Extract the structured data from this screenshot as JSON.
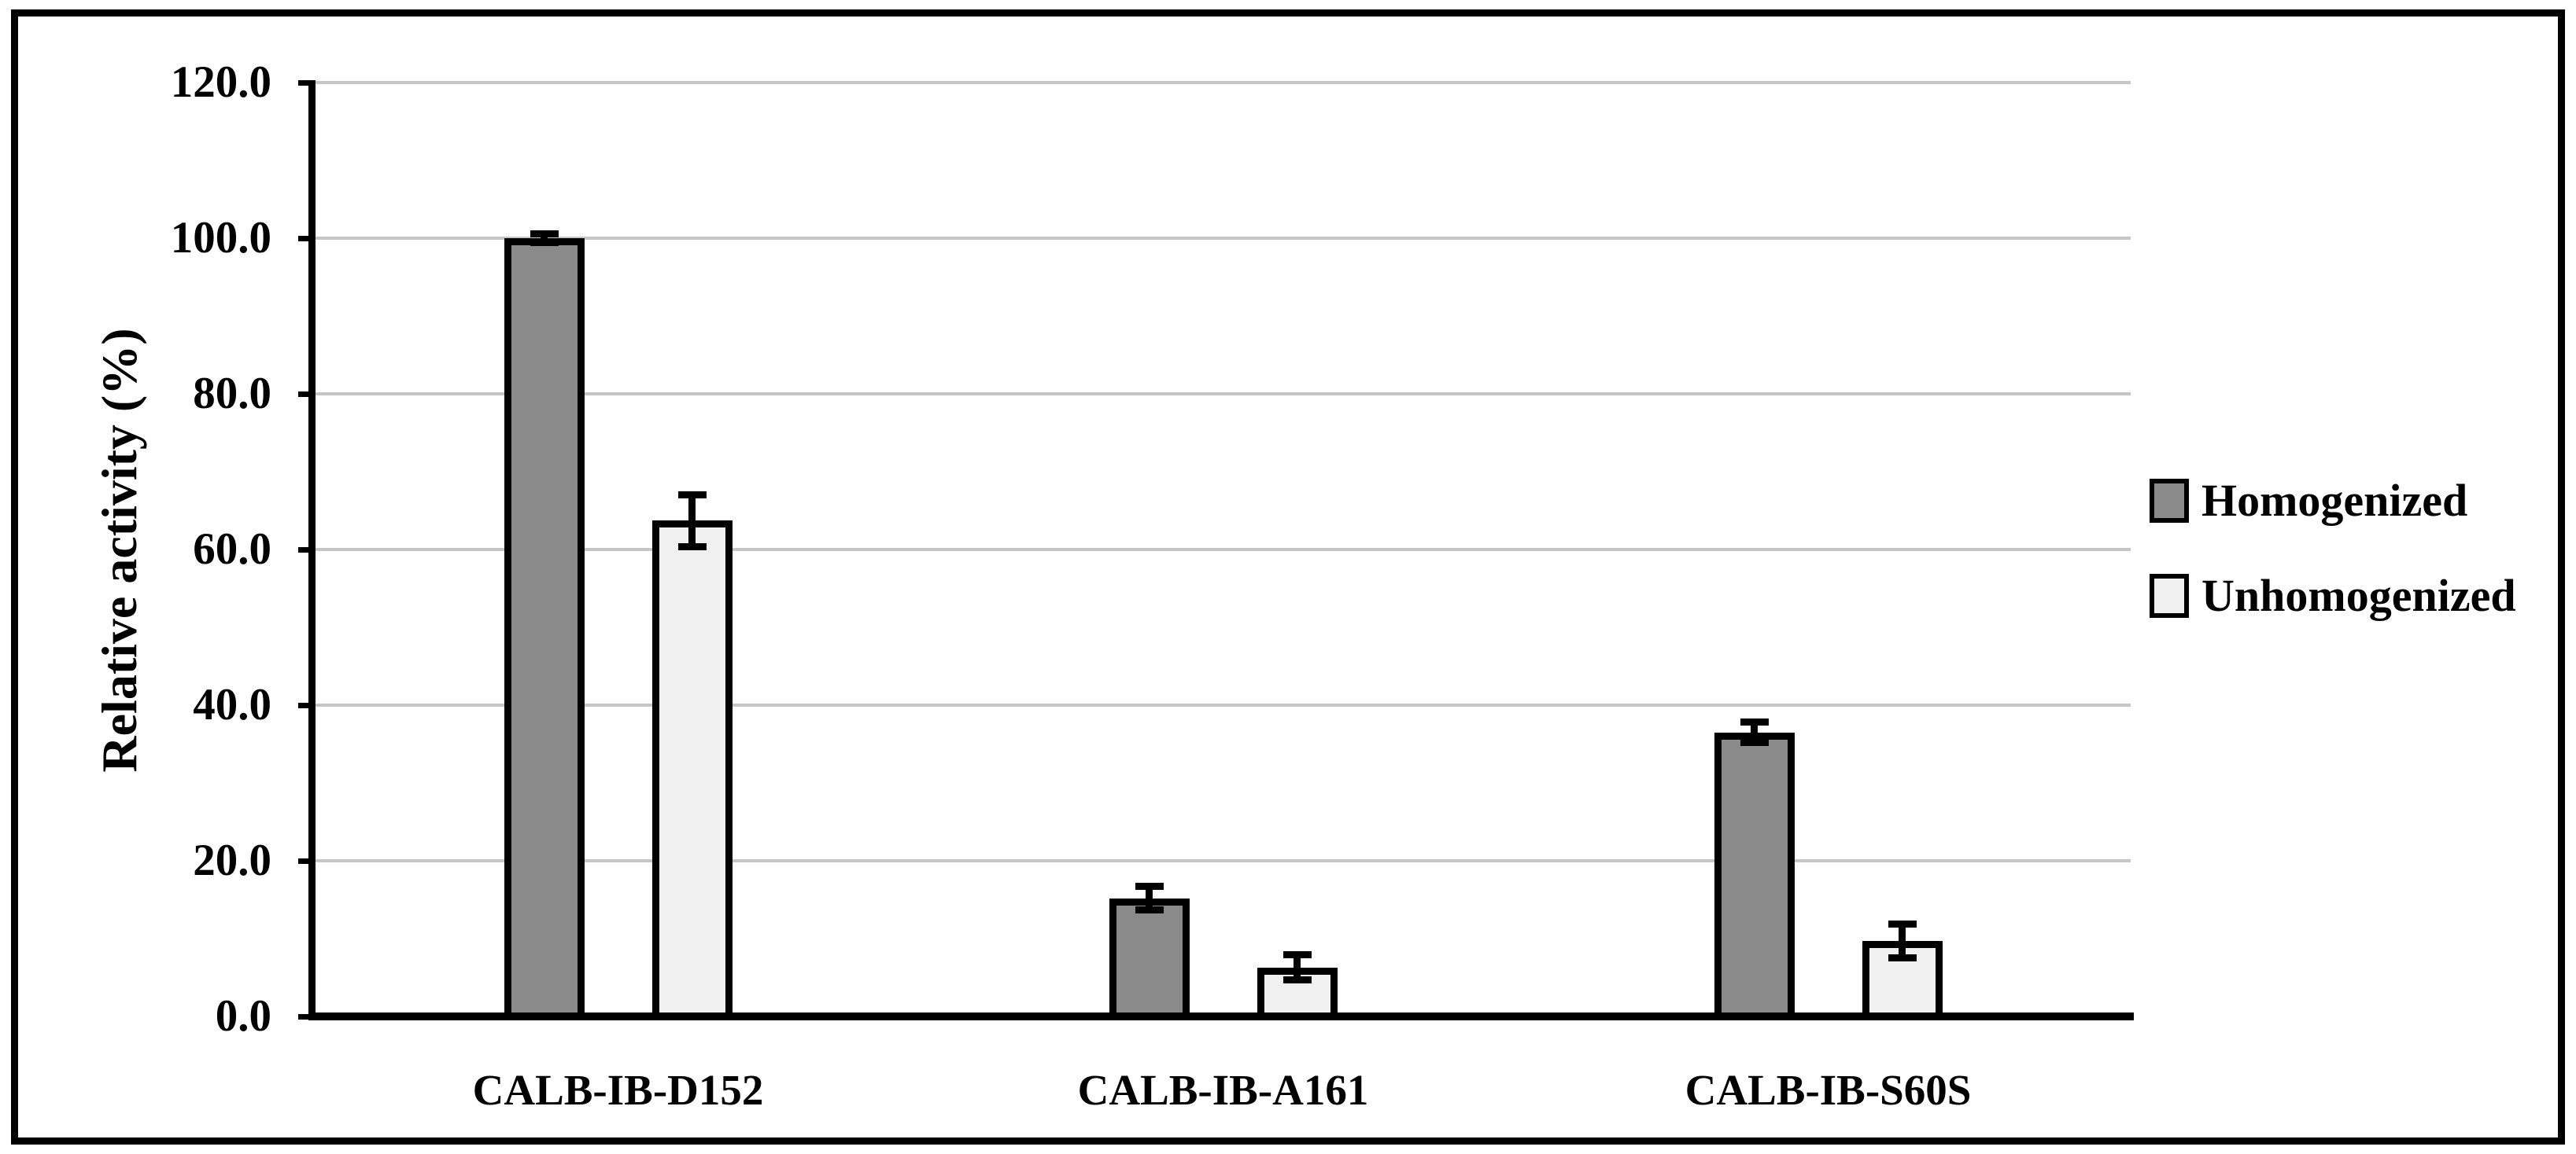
{
  "figure": {
    "kind": "grouped bar chart with error bars",
    "background": "#ffffff",
    "frame_color": "#000000"
  },
  "y_axis": {
    "title": "Relative activity (%)",
    "tick_labels": [
      "120.0",
      "100.0",
      "80.0",
      "60.0",
      "40.0",
      "20.0",
      "0.0"
    ],
    "min": 0,
    "max": 120,
    "step": 20
  },
  "x_axis": {
    "categories": [
      "CALB-IB-D152",
      "CALB-IB-A161",
      "CALB-IB-S60S"
    ]
  },
  "legend": {
    "position": "right",
    "entries": [
      {
        "label": "Homogenized",
        "color": "#8a8a8a"
      },
      {
        "label": "Unhomogenized",
        "color": "#f0f0f0"
      }
    ]
  },
  "colors": {
    "bar_dark": "#8a8a8a",
    "bar_light": "#f0f0f0",
    "bar_border": "#000000",
    "gridline": "#c6c6c6",
    "axis": "#000000"
  },
  "chart_data": {
    "type": "bar",
    "title": "",
    "xlabel": "",
    "ylabel": "Relative activity (%)",
    "ylim": [
      0,
      120
    ],
    "ytick_step": 20,
    "grid": true,
    "legend_position": "right",
    "categories": [
      "CALB-IB-D152",
      "CALB-IB-A161",
      "CALB-IB-S60S"
    ],
    "series": [
      {
        "name": "Homogenized",
        "fill": "#8a8a8a",
        "values": [
          100.0,
          15.2,
          36.5
        ],
        "errors": [
          0.6,
          1.5,
          1.3
        ]
      },
      {
        "name": "Unhomogenized",
        "fill": "#f0f0f0",
        "values": [
          63.7,
          6.3,
          9.7
        ],
        "errors": [
          3.3,
          1.6,
          2.2
        ]
      }
    ]
  }
}
